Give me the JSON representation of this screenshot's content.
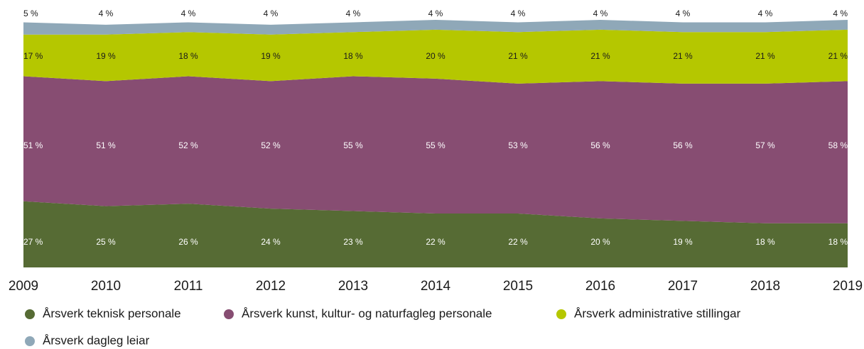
{
  "chart_data": {
    "type": "stacked-area",
    "categories": [
      "2009",
      "2010",
      "2011",
      "2012",
      "2013",
      "2014",
      "2015",
      "2016",
      "2017",
      "2018",
      "2019"
    ],
    "ylim": [
      0,
      101
    ],
    "series": [
      {
        "name": "Årsverk teknisk personale",
        "color": "#566b34",
        "values": [
          27,
          25,
          26,
          24,
          23,
          22,
          22,
          20,
          19,
          18,
          18
        ],
        "value_labels": [
          "27 %",
          "25 %",
          "26 %",
          "24 %",
          "23 %",
          "22 %",
          "22 %",
          "20 %",
          "19 %",
          "18 %",
          "18 %"
        ]
      },
      {
        "name": "Årsverk kunst, kultur- og naturfagleg personale",
        "color": "#874d72",
        "values": [
          51,
          51,
          52,
          52,
          55,
          55,
          53,
          56,
          56,
          57,
          58
        ],
        "value_labels": [
          "51 %",
          "51 %",
          "52 %",
          "52 %",
          "55 %",
          "55 %",
          "53 %",
          "56 %",
          "56 %",
          "57 %",
          "58 %"
        ]
      },
      {
        "name": "Årsverk administrative stillingar",
        "color": "#b5c700",
        "values": [
          17,
          19,
          18,
          19,
          18,
          20,
          21,
          21,
          21,
          21,
          21
        ],
        "value_labels": [
          "17 %",
          "19 %",
          "18 %",
          "19 %",
          "18 %",
          "20 %",
          "21 %",
          "21 %",
          "21 %",
          "21 %",
          "21 %"
        ]
      },
      {
        "name": "Årsverk dagleg leiar",
        "color": "#8fa8b8",
        "values": [
          5,
          4,
          4,
          4,
          4,
          4,
          4,
          4,
          4,
          4,
          4
        ],
        "value_labels": [
          "5 %",
          "4 %",
          "4 %",
          "4 %",
          "4 %",
          "4 %",
          "4 %",
          "4 %",
          "4 %",
          "4 %",
          "4 %"
        ]
      }
    ]
  }
}
